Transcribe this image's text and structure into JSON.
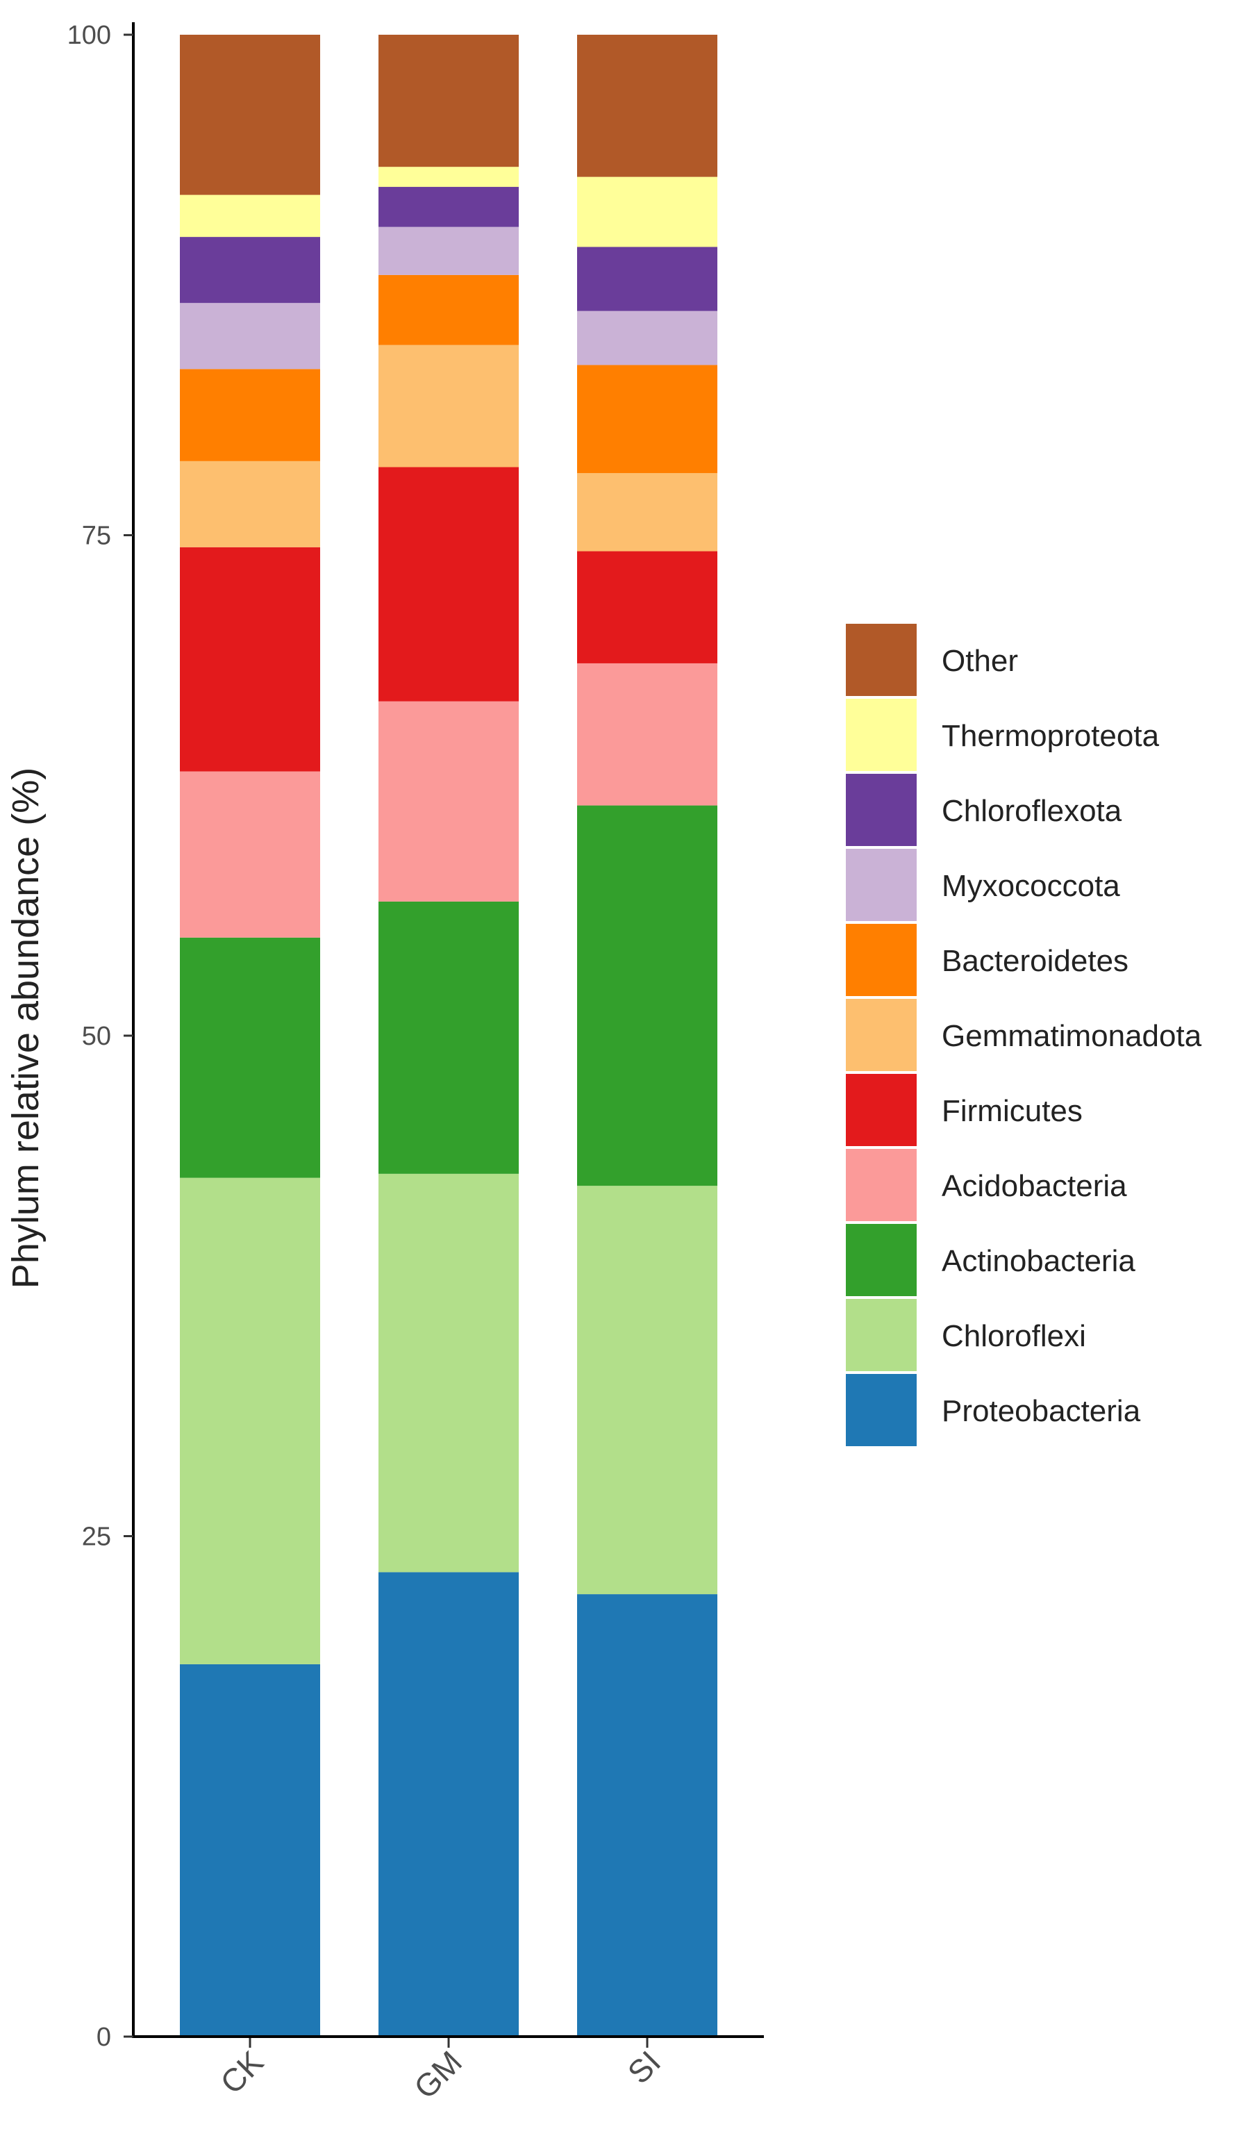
{
  "chart_data": {
    "type": "bar",
    "stacked": true,
    "title": "",
    "xlabel": "",
    "ylabel": "Phylum relative abundance  (%)",
    "ylim": [
      0,
      100
    ],
    "yticks": [
      0,
      25,
      50,
      75,
      100
    ],
    "grid": false,
    "legend_position": "right",
    "categories": [
      "CK",
      "GM",
      "SI"
    ],
    "series": [
      {
        "name": "Proteobacteria",
        "color": "#1f78b4",
        "values": [
          18.6,
          23.2,
          22.1
        ]
      },
      {
        "name": "Chloroflexi",
        "color": "#b2df8a",
        "values": [
          24.3,
          19.9,
          20.4
        ]
      },
      {
        "name": "Actinobacteria",
        "color": "#33a02c",
        "values": [
          12.0,
          13.6,
          19.0
        ]
      },
      {
        "name": "Acidobacteria",
        "color": "#fb9a99",
        "values": [
          8.3,
          10.0,
          7.1
        ]
      },
      {
        "name": "Firmicutes",
        "color": "#e31a1c",
        "values": [
          11.2,
          11.7,
          5.6
        ]
      },
      {
        "name": "Gemmatimonadota",
        "color": "#fdbf6f",
        "values": [
          4.3,
          6.1,
          3.9
        ]
      },
      {
        "name": "Bacteroidetes",
        "color": "#ff7f00",
        "values": [
          4.6,
          3.5,
          5.4
        ]
      },
      {
        "name": "Myxococcota",
        "color": "#cab2d6",
        "values": [
          3.3,
          2.4,
          2.7
        ]
      },
      {
        "name": "Chloroflexota",
        "color": "#6a3d9a",
        "values": [
          3.3,
          2.0,
          3.2
        ]
      },
      {
        "name": "Thermoproteota",
        "color": "#ffff99",
        "values": [
          2.1,
          1.0,
          3.5
        ]
      },
      {
        "name": "Other",
        "color": "#b15928",
        "values": [
          8.0,
          6.6,
          7.1
        ]
      }
    ]
  }
}
